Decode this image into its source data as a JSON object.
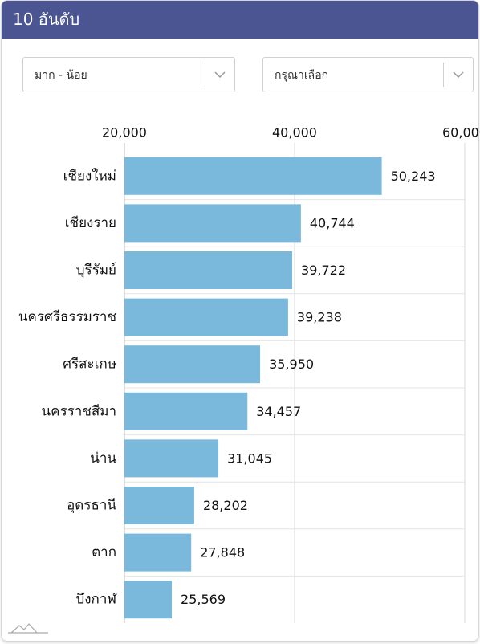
{
  "header": {
    "title": "10 อันดับ"
  },
  "controls": {
    "sort": "มาก - น้อย",
    "filter": "กรุณาเลือก"
  },
  "chart_data": {
    "type": "bar",
    "orientation": "horizontal",
    "categories": [
      "เชียงใหม่",
      "เชียงราย",
      "บุรีรัมย์",
      "นครศรีธรรมราช",
      "ศรีสะเกษ",
      "นครราชสีมา",
      "น่าน",
      "อุดรธานี",
      "ตาก",
      "บึงกาฬ"
    ],
    "values": [
      50243,
      40744,
      39722,
      39238,
      35950,
      34457,
      31045,
      28202,
      27848,
      25569
    ],
    "value_labels": [
      "50,243",
      "40,744",
      "39,722",
      "39,238",
      "35,950",
      "34,457",
      "31,045",
      "28,202",
      "27,848",
      "25,569"
    ],
    "color": "#7ab8dc",
    "xlim": [
      20000,
      60000
    ],
    "xticks": [
      {
        "value": 20000,
        "label": "20,000"
      },
      {
        "value": 40000,
        "label": "40,000"
      },
      {
        "value": 60000,
        "label": "60,000"
      }
    ],
    "grid": true
  }
}
